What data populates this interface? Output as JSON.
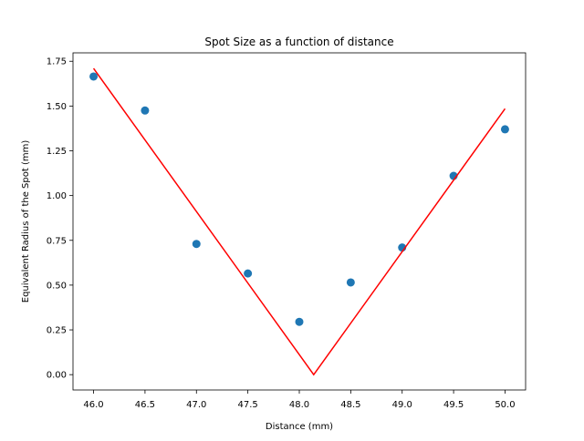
{
  "chart_data": {
    "type": "scatter",
    "title": "Spot Size as a function of distance",
    "xlabel": "Distance (mm)",
    "ylabel": "Equivalent Radius of the Spot (mm)",
    "xlim": [
      45.8,
      50.2
    ],
    "ylim": [
      -0.0856,
      1.797
    ],
    "x_ticks": [
      46.0,
      46.5,
      47.0,
      47.5,
      48.0,
      48.5,
      49.0,
      49.5,
      50.0
    ],
    "x_tick_labels": [
      "46.0",
      "46.5",
      "47.0",
      "47.5",
      "48.0",
      "48.5",
      "49.0",
      "49.5",
      "50.0"
    ],
    "y_ticks": [
      0.0,
      0.25,
      0.5,
      0.75,
      1.0,
      1.25,
      1.5,
      1.75
    ],
    "y_tick_labels": [
      "0.00",
      "0.25",
      "0.50",
      "0.75",
      "1.00",
      "1.25",
      "1.50",
      "1.75"
    ],
    "grid": false,
    "series": [
      {
        "type": "scatter",
        "color": "#1f77b4",
        "x": [
          46.0,
          46.5,
          47.0,
          47.5,
          48.0,
          48.5,
          49.0,
          49.5,
          50.0
        ],
        "y": [
          1.665,
          1.475,
          0.73,
          0.565,
          0.295,
          0.515,
          0.71,
          1.11,
          1.37
        ]
      },
      {
        "type": "line",
        "color": "#ff0000",
        "x": [
          46.0,
          48.14,
          50.0
        ],
        "y": [
          1.71,
          0.0,
          1.485
        ]
      }
    ]
  }
}
